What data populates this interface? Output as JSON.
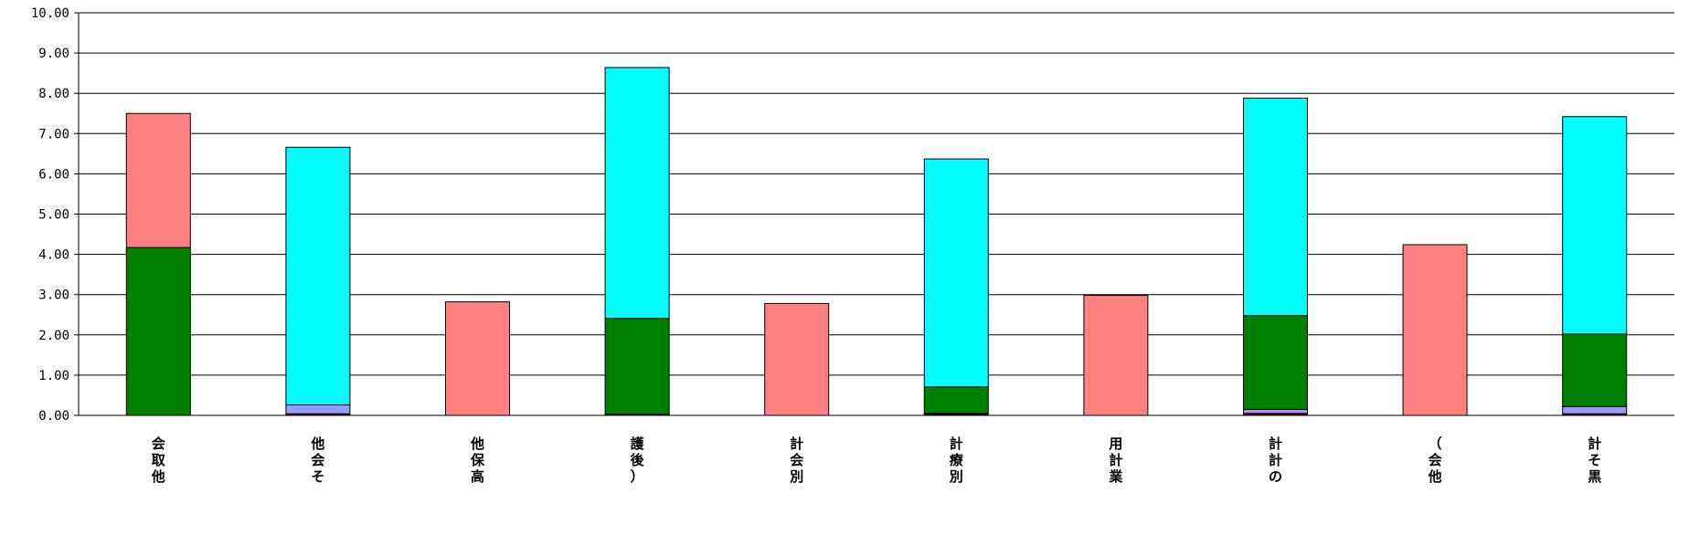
{
  "chart_data": {
    "type": "bar",
    "stacked": true,
    "title": "",
    "xlabel": "",
    "ylabel": "",
    "ylim": [
      0,
      10
    ],
    "yticks": [
      "0.00",
      "1.00",
      "2.00",
      "3.00",
      "4.00",
      "5.00",
      "6.00",
      "7.00",
      "8.00",
      "9.00",
      "10.00"
    ],
    "grid": true,
    "legend": "none",
    "categories": [
      "会取他",
      "他会そ",
      "他保高",
      "護後）",
      "計会別",
      "計療別",
      "用計業",
      "計計の",
      "（会他",
      "計そ黒"
    ],
    "series": [
      {
        "color": "#800000",
        "values": [
          0,
          0.04,
          0,
          0.02,
          0,
          0.03,
          0,
          0.05,
          0,
          0.04
        ]
      },
      {
        "color": "#9999FF",
        "values": [
          0,
          0.22,
          0,
          0.01,
          0,
          0.02,
          0,
          0.1,
          0,
          0.18
        ]
      },
      {
        "color": "#008000",
        "values": [
          4.17,
          0,
          0,
          2.38,
          0,
          0.66,
          0,
          2.33,
          0,
          1.8
        ]
      },
      {
        "color": "#00FFFF",
        "values": [
          0,
          6.4,
          0,
          6.23,
          0,
          5.66,
          0,
          5.4,
          0,
          5.4
        ]
      },
      {
        "color": "#FF8080",
        "values": [
          3.33,
          0,
          2.82,
          0,
          2.78,
          0,
          2.98,
          0,
          4.24,
          0
        ]
      }
    ]
  }
}
